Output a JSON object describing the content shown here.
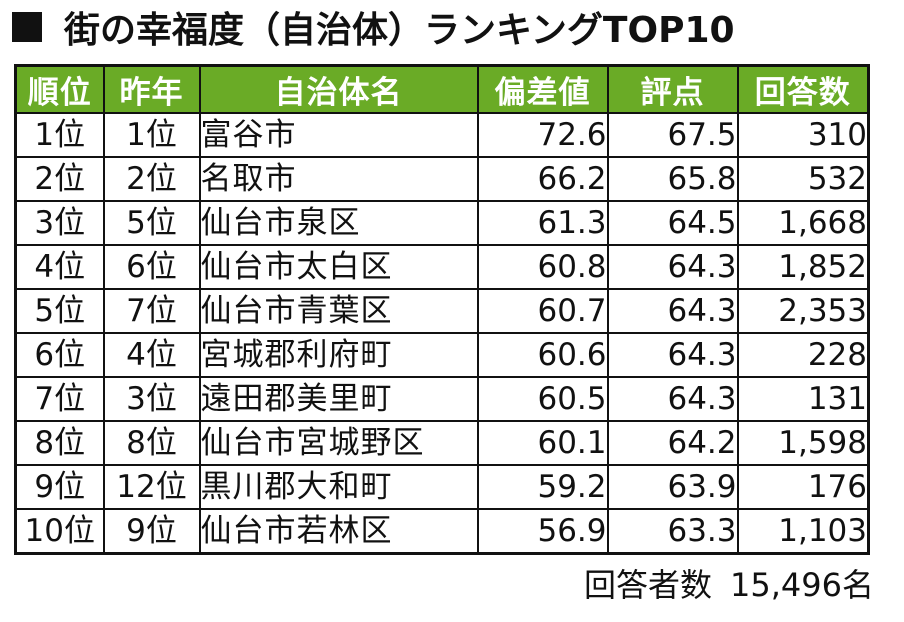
{
  "title": "街の幸福度（自治体）ランキングTOP10",
  "headers": {
    "rank": "順位",
    "prev": "昨年",
    "name": "自治体名",
    "deviation": "偏差値",
    "score": "評点",
    "responses": "回答数"
  },
  "rows": [
    {
      "rank": "1位",
      "prev": "1位",
      "name": "富谷市",
      "deviation": "72.6",
      "score": "67.5",
      "responses": "310"
    },
    {
      "rank": "2位",
      "prev": "2位",
      "name": "名取市",
      "deviation": "66.2",
      "score": "65.8",
      "responses": "532"
    },
    {
      "rank": "3位",
      "prev": "5位",
      "name": "仙台市泉区",
      "deviation": "61.3",
      "score": "64.5",
      "responses": "1,668"
    },
    {
      "rank": "4位",
      "prev": "6位",
      "name": "仙台市太白区",
      "deviation": "60.8",
      "score": "64.3",
      "responses": "1,852"
    },
    {
      "rank": "5位",
      "prev": "7位",
      "name": "仙台市青葉区",
      "deviation": "60.7",
      "score": "64.3",
      "responses": "2,353"
    },
    {
      "rank": "6位",
      "prev": "4位",
      "name": "宮城郡利府町",
      "deviation": "60.6",
      "score": "64.3",
      "responses": "228"
    },
    {
      "rank": "7位",
      "prev": "3位",
      "name": "遠田郡美里町",
      "deviation": "60.5",
      "score": "64.3",
      "responses": "131"
    },
    {
      "rank": "8位",
      "prev": "8位",
      "name": "仙台市宮城野区",
      "deviation": "60.1",
      "score": "64.2",
      "responses": "1,598"
    },
    {
      "rank": "9位",
      "prev": "12位",
      "name": "黒川郡大和町",
      "deviation": "59.2",
      "score": "63.9",
      "responses": "176"
    },
    {
      "rank": "10位",
      "prev": "9位",
      "name": "仙台市若林区",
      "deviation": "56.9",
      "score": "63.3",
      "responses": "1,103"
    }
  ],
  "footer": {
    "label": "回答者数",
    "value": "15,496名"
  },
  "colors": {
    "header_bg": "#6aab26",
    "header_text": "#ffffff"
  }
}
